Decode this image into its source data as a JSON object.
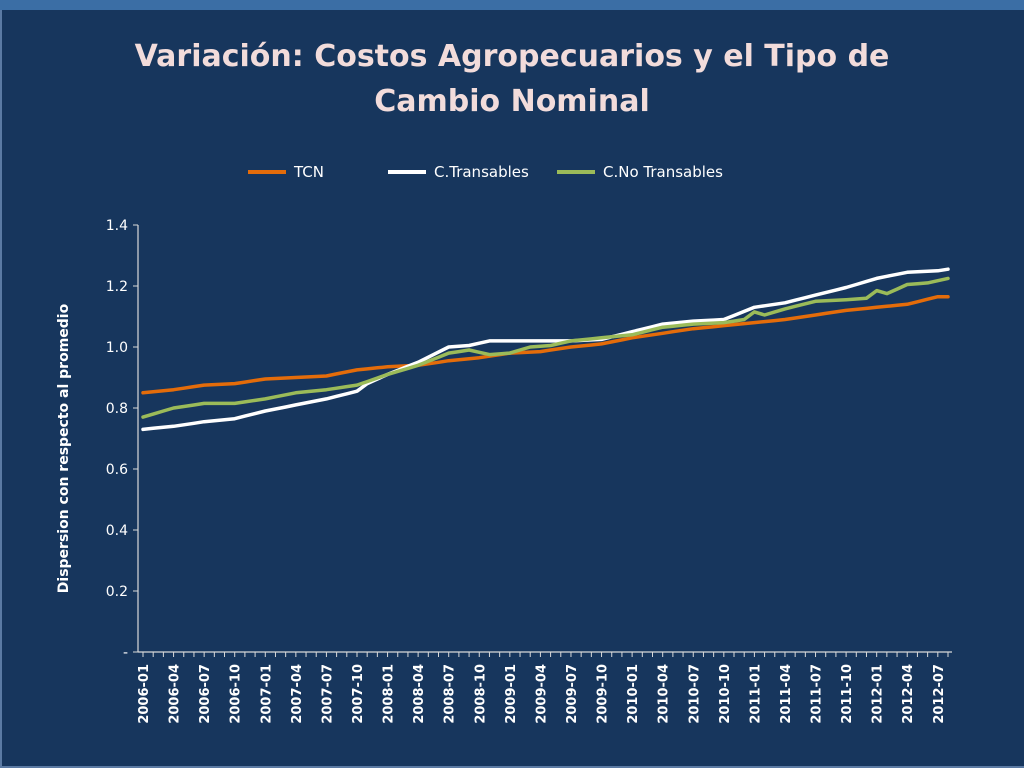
{
  "chart_data": {
    "type": "line",
    "title_line1": "Variación:  Costos  Agropecuarios  y el Tipo de",
    "title_line2": "Cambio Nominal",
    "ylabel": "Dispersion con respecto al promedio",
    "ylim": [
      0,
      1.4
    ],
    "y_ticks": [
      {
        "value": 1.4,
        "label": "1.4"
      },
      {
        "value": 1.2,
        "label": "1.2"
      },
      {
        "value": 1.0,
        "label": "1.0"
      },
      {
        "value": 0.8,
        "label": "0.8"
      },
      {
        "value": 0.6,
        "label": "0.6"
      },
      {
        "value": 0.4,
        "label": "0.4"
      },
      {
        "value": 0.2,
        "label": "0.2"
      },
      {
        "value": 0,
        "label": "-"
      }
    ],
    "x_start": "2006-01",
    "n_points": 80,
    "x_tick_labels": [
      "2006-01",
      "2006-04",
      "2006-07",
      "2006-10",
      "2007-01",
      "2007-04",
      "2007-07",
      "2007-10",
      "2008-01",
      "2008-04",
      "2008-07",
      "2008-10",
      "2009-01",
      "2009-04",
      "2009-07",
      "2009-10",
      "2010-01",
      "2010-04",
      "2010-07",
      "2010-10",
      "2011-01",
      "2011-04",
      "2011-07",
      "2011-10",
      "2012-01",
      "2012-04",
      "2012-07"
    ],
    "x_tick_step": 3,
    "legend_position": "top-center",
    "series": [
      {
        "name": "TCN",
        "color": "#e46c0a",
        "anchors": [
          [
            0,
            0.85
          ],
          [
            3,
            0.86
          ],
          [
            6,
            0.875
          ],
          [
            9,
            0.88
          ],
          [
            12,
            0.895
          ],
          [
            15,
            0.9
          ],
          [
            18,
            0.905
          ],
          [
            21,
            0.925
          ],
          [
            24,
            0.935
          ],
          [
            27,
            0.94
          ],
          [
            30,
            0.955
          ],
          [
            33,
            0.965
          ],
          [
            36,
            0.98
          ],
          [
            39,
            0.985
          ],
          [
            42,
            1.0
          ],
          [
            45,
            1.01
          ],
          [
            48,
            1.03
          ],
          [
            51,
            1.045
          ],
          [
            54,
            1.06
          ],
          [
            57,
            1.07
          ],
          [
            60,
            1.08
          ],
          [
            63,
            1.09
          ],
          [
            66,
            1.105
          ],
          [
            69,
            1.12
          ],
          [
            72,
            1.13
          ],
          [
            75,
            1.14
          ],
          [
            78,
            1.165
          ],
          [
            79,
            1.165
          ]
        ]
      },
      {
        "name": "C.Transables",
        "color": "#ffffff",
        "anchors": [
          [
            0,
            0.73
          ],
          [
            3,
            0.74
          ],
          [
            6,
            0.755
          ],
          [
            9,
            0.765
          ],
          [
            12,
            0.79
          ],
          [
            15,
            0.81
          ],
          [
            18,
            0.83
          ],
          [
            21,
            0.855
          ],
          [
            22,
            0.88
          ],
          [
            24,
            0.91
          ],
          [
            27,
            0.95
          ],
          [
            30,
            1.0
          ],
          [
            32,
            1.005
          ],
          [
            34,
            1.02
          ],
          [
            36,
            1.02
          ],
          [
            39,
            1.02
          ],
          [
            42,
            1.02
          ],
          [
            45,
            1.025
          ],
          [
            48,
            1.05
          ],
          [
            51,
            1.075
          ],
          [
            54,
            1.085
          ],
          [
            57,
            1.09
          ],
          [
            60,
            1.13
          ],
          [
            63,
            1.145
          ],
          [
            66,
            1.17
          ],
          [
            69,
            1.195
          ],
          [
            72,
            1.225
          ],
          [
            75,
            1.245
          ],
          [
            78,
            1.25
          ],
          [
            79,
            1.255
          ]
        ]
      },
      {
        "name": "C.No Transables",
        "color": "#9bbb59",
        "anchors": [
          [
            0,
            0.77
          ],
          [
            3,
            0.8
          ],
          [
            6,
            0.815
          ],
          [
            9,
            0.815
          ],
          [
            12,
            0.83
          ],
          [
            15,
            0.85
          ],
          [
            18,
            0.86
          ],
          [
            21,
            0.875
          ],
          [
            24,
            0.91
          ],
          [
            27,
            0.94
          ],
          [
            30,
            0.98
          ],
          [
            32,
            0.99
          ],
          [
            34,
            0.975
          ],
          [
            36,
            0.98
          ],
          [
            38,
            1.0
          ],
          [
            40,
            1.005
          ],
          [
            42,
            1.02
          ],
          [
            45,
            1.03
          ],
          [
            48,
            1.04
          ],
          [
            51,
            1.065
          ],
          [
            54,
            1.075
          ],
          [
            57,
            1.08
          ],
          [
            59,
            1.09
          ],
          [
            60,
            1.115
          ],
          [
            61,
            1.105
          ],
          [
            63,
            1.125
          ],
          [
            66,
            1.15
          ],
          [
            69,
            1.155
          ],
          [
            71,
            1.16
          ],
          [
            72,
            1.185
          ],
          [
            73,
            1.175
          ],
          [
            75,
            1.205
          ],
          [
            77,
            1.21
          ],
          [
            79,
            1.225
          ]
        ]
      }
    ]
  }
}
